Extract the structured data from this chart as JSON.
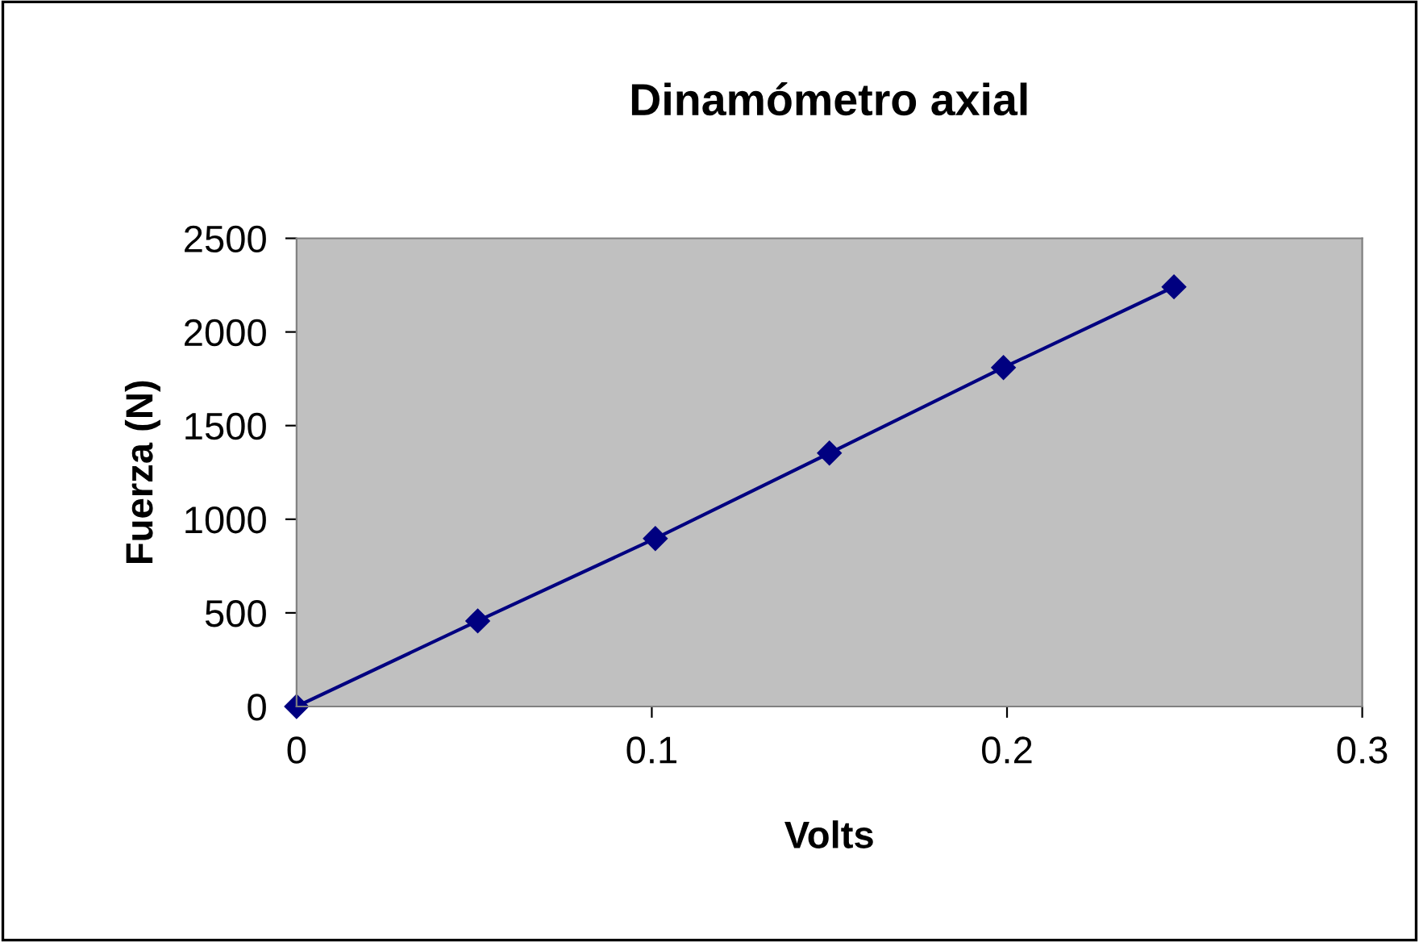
{
  "chart_data": {
    "type": "line",
    "title": "Dinamómetro axial",
    "xlabel": "Volts",
    "ylabel": "Fuerza (N)",
    "x": [
      0,
      0.051,
      0.101,
      0.15,
      0.199,
      0.247
    ],
    "series": [
      {
        "color": "#000080",
        "values": [
          0,
          457,
          897,
          1353,
          1810,
          2241
        ]
      }
    ],
    "xlim": [
      0,
      0.3
    ],
    "xticks": [
      0,
      0.1,
      0.2,
      0.3
    ],
    "ylim": [
      0,
      2500
    ],
    "yticks": [
      0,
      500,
      1000,
      1500,
      2000,
      2500
    ],
    "grid": false,
    "legend": false,
    "marker": "diamond",
    "line_style": "solid"
  }
}
